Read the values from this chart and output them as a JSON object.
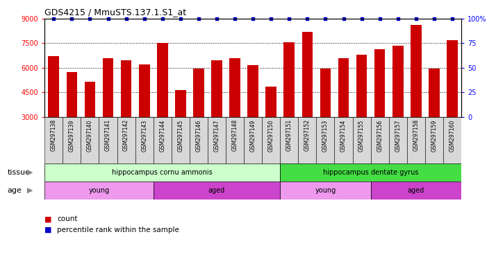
{
  "title": "GDS4215 / MmuSTS.137.1.S1_at",
  "samples": [
    "GSM297138",
    "GSM297139",
    "GSM297140",
    "GSM297141",
    "GSM297142",
    "GSM297143",
    "GSM297144",
    "GSM297145",
    "GSM297146",
    "GSM297147",
    "GSM297148",
    "GSM297149",
    "GSM297150",
    "GSM297151",
    "GSM297152",
    "GSM297153",
    "GSM297154",
    "GSM297155",
    "GSM297156",
    "GSM297157",
    "GSM297158",
    "GSM297159",
    "GSM297160"
  ],
  "counts": [
    6700,
    5750,
    5150,
    6600,
    6450,
    6200,
    7500,
    4650,
    5950,
    6450,
    6600,
    6150,
    4850,
    7550,
    8200,
    5950,
    6600,
    6800,
    7150,
    7350,
    8600,
    5950,
    7700
  ],
  "percentile": [
    100,
    100,
    100,
    100,
    100,
    100,
    100,
    100,
    100,
    100,
    100,
    100,
    100,
    100,
    100,
    100,
    100,
    100,
    100,
    100,
    100,
    100,
    100
  ],
  "ylim_left": [
    3000,
    9000
  ],
  "ylim_right": [
    0,
    100
  ],
  "yticks_left": [
    3000,
    4500,
    6000,
    7500,
    9000
  ],
  "yticks_right": [
    0,
    25,
    50,
    75,
    100
  ],
  "bar_color": "#cc0000",
  "percentile_color": "#0000cc",
  "background_color": "#ffffff",
  "plot_bg_color": "#ffffff",
  "tissue_groups": [
    {
      "label": "hippocampus cornu ammonis",
      "start": 0,
      "end": 12,
      "color": "#ccffcc"
    },
    {
      "label": "hippocampus dentate gyrus",
      "start": 13,
      "end": 22,
      "color": "#44dd44"
    }
  ],
  "age_groups": [
    {
      "label": "young",
      "start": 0,
      "end": 5,
      "color": "#ee99ee"
    },
    {
      "label": "aged",
      "start": 6,
      "end": 12,
      "color": "#cc44cc"
    },
    {
      "label": "young",
      "start": 13,
      "end": 17,
      "color": "#ee99ee"
    },
    {
      "label": "aged",
      "start": 18,
      "end": 22,
      "color": "#cc44cc"
    }
  ],
  "tissue_label": "tissue",
  "age_label": "age",
  "legend_count_label": "count",
  "legend_pct_label": "percentile rank within the sample",
  "xtick_bg": "#d8d8d8"
}
